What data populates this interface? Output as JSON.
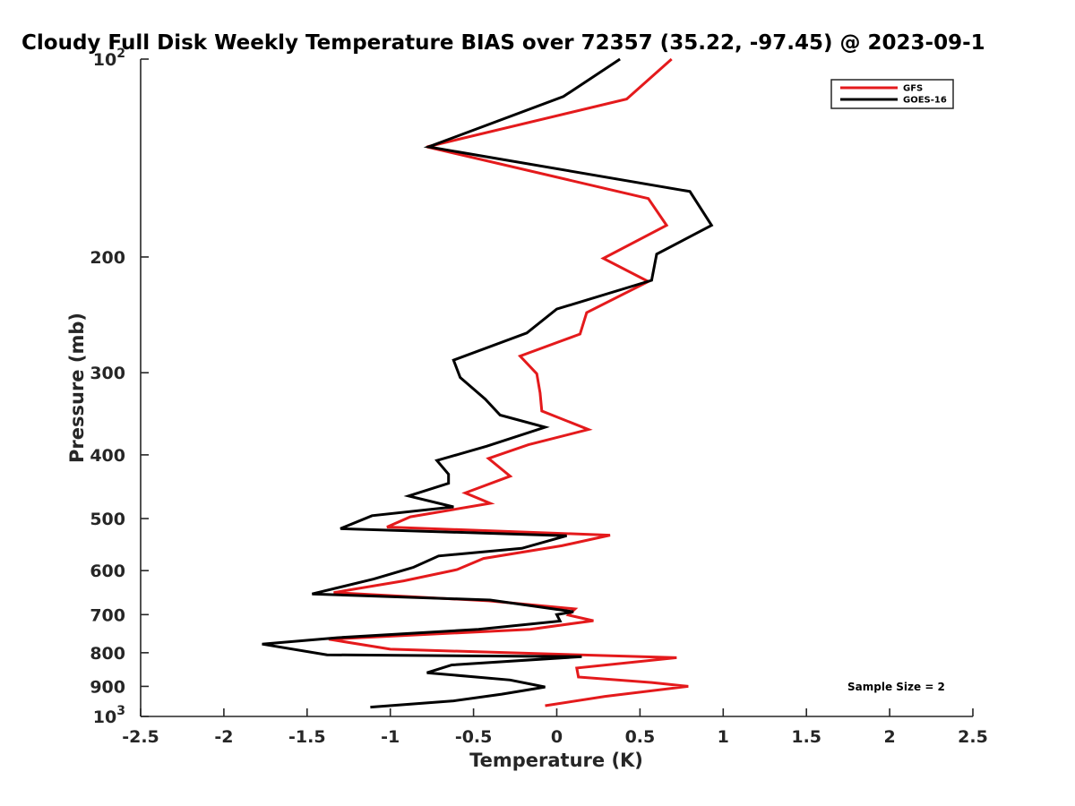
{
  "chart_data": {
    "type": "line",
    "title": "Cloudy Full Disk Weekly Temperature BIAS over 72357 (35.22, -97.45) @ 2023-09-1",
    "xlabel": "Temperature (K)",
    "ylabel": "Pressure (mb)",
    "xlim": [
      -2.5,
      2.5
    ],
    "ylim": [
      100,
      1000
    ],
    "y_scale": "log",
    "y_reversed": true,
    "grid": false,
    "legend_position": "top-right",
    "x_ticks": [
      "-2.5",
      "-2",
      "-1.5",
      "-1",
      "-0.5",
      "0",
      "0.5",
      "1",
      "1.5",
      "2",
      "2.5"
    ],
    "y_ticks": [
      {
        "value": 100,
        "base": "10",
        "exp": "2"
      },
      {
        "value": 200,
        "label": "200"
      },
      {
        "value": 300,
        "label": "300"
      },
      {
        "value": 400,
        "label": "400"
      },
      {
        "value": 500,
        "label": "500"
      },
      {
        "value": 600,
        "label": "600"
      },
      {
        "value": 700,
        "label": "700"
      },
      {
        "value": 800,
        "label": "800"
      },
      {
        "value": 900,
        "label": "900"
      },
      {
        "value": 1000,
        "base": "10",
        "exp": "3"
      }
    ],
    "annotation": "Sample Size = 2",
    "series": [
      {
        "name": "GFS",
        "color": "#e41a1c",
        "points": [
          [
            0.69,
            100
          ],
          [
            0.42,
            115
          ],
          [
            -0.78,
            136
          ],
          [
            0.55,
            163
          ],
          [
            0.66,
            179
          ],
          [
            0.28,
            201
          ],
          [
            0.55,
            218
          ],
          [
            0.18,
            243
          ],
          [
            0.14,
            262
          ],
          [
            -0.22,
            283
          ],
          [
            -0.12,
            301
          ],
          [
            -0.1,
            322
          ],
          [
            -0.09,
            343
          ],
          [
            0.19,
            366
          ],
          [
            -0.17,
            386
          ],
          [
            -0.41,
            405
          ],
          [
            -0.28,
            431
          ],
          [
            -0.55,
            457
          ],
          [
            -0.4,
            474
          ],
          [
            -0.88,
            497
          ],
          [
            -1.02,
            515
          ],
          [
            0.32,
            530
          ],
          [
            0.03,
            550
          ],
          [
            -0.44,
            575
          ],
          [
            -0.6,
            598
          ],
          [
            -0.92,
            622
          ],
          [
            -1.34,
            648
          ],
          [
            -0.41,
            667
          ],
          [
            0.11,
            686
          ],
          [
            0.07,
            701
          ],
          [
            0.22,
            715
          ],
          [
            -0.16,
            737
          ],
          [
            -1.37,
            763
          ],
          [
            -1.0,
            790
          ],
          [
            0.72,
            814
          ],
          [
            0.12,
            844
          ],
          [
            0.13,
            871
          ],
          [
            0.57,
            888
          ],
          [
            0.79,
            900
          ],
          [
            0.29,
            932
          ],
          [
            -0.07,
            963
          ]
        ]
      },
      {
        "name": "GOES-16",
        "color": "#000000",
        "points": [
          [
            0.38,
            100
          ],
          [
            0.04,
            114
          ],
          [
            -0.77,
            136
          ],
          [
            0.8,
            159
          ],
          [
            0.93,
            179
          ],
          [
            0.6,
            198
          ],
          [
            0.57,
            217
          ],
          [
            0.0,
            240
          ],
          [
            -0.18,
            261
          ],
          [
            -0.62,
            287
          ],
          [
            -0.58,
            305
          ],
          [
            -0.43,
            329
          ],
          [
            -0.34,
            348
          ],
          [
            -0.07,
            363
          ],
          [
            -0.42,
            388
          ],
          [
            -0.72,
            408
          ],
          [
            -0.65,
            428
          ],
          [
            -0.65,
            442
          ],
          [
            -0.89,
            462
          ],
          [
            -0.62,
            480
          ],
          [
            -1.11,
            495
          ],
          [
            -1.3,
            518
          ],
          [
            0.06,
            531
          ],
          [
            -0.21,
            555
          ],
          [
            -0.71,
            570
          ],
          [
            -0.86,
            593
          ],
          [
            -1.1,
            618
          ],
          [
            -1.47,
            651
          ],
          [
            -0.4,
            665
          ],
          [
            0.1,
            693
          ],
          [
            0.0,
            700
          ],
          [
            0.02,
            716
          ],
          [
            -0.47,
            737
          ],
          [
            -1.32,
            759
          ],
          [
            -1.77,
            776
          ],
          [
            -1.38,
            806
          ],
          [
            0.15,
            811
          ],
          [
            -0.63,
            835
          ],
          [
            -0.78,
            858
          ],
          [
            -0.28,
            880
          ],
          [
            -0.07,
            902
          ],
          [
            -0.33,
            925
          ],
          [
            -0.62,
            947
          ],
          [
            -1.12,
            968
          ]
        ]
      }
    ]
  }
}
